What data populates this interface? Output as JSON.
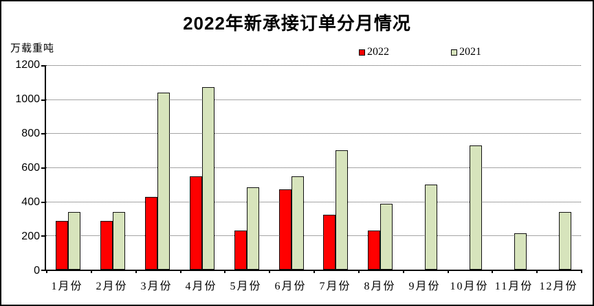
{
  "title": "2022年新承接订单分月情况",
  "y_unit_label": "万载重吨",
  "legend": {
    "items": [
      {
        "label": "2022",
        "color": "#ff0000"
      },
      {
        "label": "2021",
        "color": "#d7e4bc"
      }
    ]
  },
  "chart_data": {
    "type": "bar",
    "title": "2022年新承接订单分月情况",
    "xlabel": "",
    "ylabel": "万载重吨",
    "categories": [
      "1月份",
      "2月份",
      "3月份",
      "4月份",
      "5月份",
      "6月份",
      "7月份",
      "8月份",
      "9月份",
      "10月份",
      "11月份",
      "12月份"
    ],
    "series": [
      {
        "name": "2022",
        "color": "#ff0000",
        "values": [
          284,
          284,
          428,
          546,
          228,
          473,
          323,
          228,
          0,
          0,
          0,
          0
        ]
      },
      {
        "name": "2021",
        "color": "#d7e4bc",
        "values": [
          337,
          340,
          1040,
          1070,
          485,
          548,
          700,
          388,
          499,
          730,
          213,
          337
        ]
      }
    ],
    "ylim": [
      0,
      1200
    ],
    "yticks": [
      0,
      200,
      400,
      600,
      800,
      1000,
      1200
    ],
    "grid": "horizontal-dotted",
    "legend_position": "top-right",
    "colors": {
      "background": "#ffffff",
      "border": "#000000",
      "gridline": "#4a4a4a"
    }
  }
}
